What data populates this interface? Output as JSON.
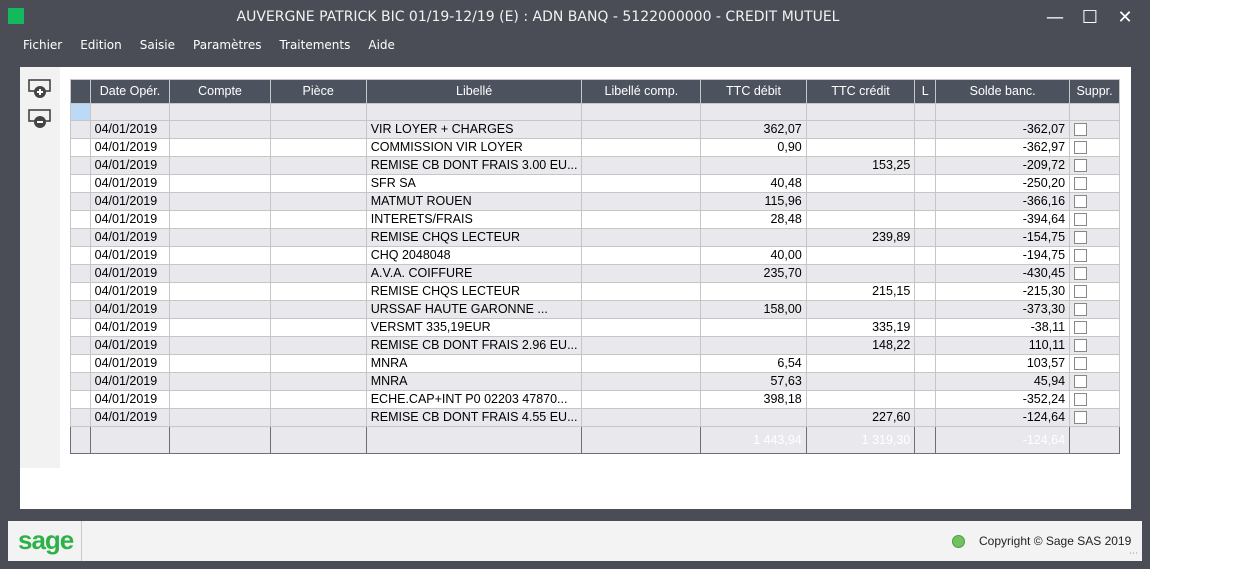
{
  "window": {
    "title": "AUVERGNE PATRICK BIC 01/19-12/19 (E) : ADN BANQ - 5122000000 - CREDIT MUTUEL",
    "minimize_icon": "minimize-icon",
    "maximize_icon": "maximize-icon",
    "close_icon": "close-icon"
  },
  "menu": [
    "Fichier",
    "Edition",
    "Saisie",
    "Paramètres",
    "Traitements",
    "Aide"
  ],
  "tools": {
    "add_icon": "add-line-icon",
    "remove_icon": "remove-line-icon"
  },
  "table": {
    "columns": [
      "Date Opér.",
      "Compte",
      "Pièce",
      "Libellé",
      "Libellé comp.",
      "TTC débit",
      "TTC crédit",
      "L",
      "Solde banc.",
      "Suppr."
    ],
    "rows": [
      {
        "date": "04/01/2019",
        "compte": "",
        "piece": "",
        "libelle": "VIR LOYER + CHARGES",
        "libelle_comp": "",
        "debit": "362,07",
        "credit": "",
        "l": "",
        "solde": "-362,07"
      },
      {
        "date": "04/01/2019",
        "compte": "",
        "piece": "",
        "libelle": "COMMISSION VIR LOYER",
        "libelle_comp": "",
        "debit": "0,90",
        "credit": "",
        "l": "",
        "solde": "-362,97"
      },
      {
        "date": "04/01/2019",
        "compte": "",
        "piece": "",
        "libelle": "REMISE CB DONT FRAIS 3.00 EU...",
        "libelle_comp": "",
        "debit": "",
        "credit": "153,25",
        "l": "",
        "solde": "-209,72"
      },
      {
        "date": "04/01/2019",
        "compte": "",
        "piece": "",
        "libelle": "SFR SA",
        "libelle_comp": "",
        "debit": "40,48",
        "credit": "",
        "l": "",
        "solde": "-250,20"
      },
      {
        "date": "04/01/2019",
        "compte": "",
        "piece": "",
        "libelle": "MATMUT ROUEN",
        "libelle_comp": "",
        "debit": "115,96",
        "credit": "",
        "l": "",
        "solde": "-366,16"
      },
      {
        "date": "04/01/2019",
        "compte": "",
        "piece": "",
        "libelle": "INTERETS/FRAIS",
        "libelle_comp": "",
        "debit": "28,48",
        "credit": "",
        "l": "",
        "solde": "-394,64"
      },
      {
        "date": "04/01/2019",
        "compte": "",
        "piece": "",
        "libelle": "REMISE CHQS LECTEUR",
        "libelle_comp": "",
        "debit": "",
        "credit": "239,89",
        "l": "",
        "solde": "-154,75"
      },
      {
        "date": "04/01/2019",
        "compte": "",
        "piece": "",
        "libelle": "CHQ 2048048",
        "libelle_comp": "",
        "debit": "40,00",
        "credit": "",
        "l": "",
        "solde": "-194,75"
      },
      {
        "date": "04/01/2019",
        "compte": "",
        "piece": "",
        "libelle": "A.V.A. COIFFURE",
        "libelle_comp": "",
        "debit": "235,70",
        "credit": "",
        "l": "",
        "solde": "-430,45"
      },
      {
        "date": "04/01/2019",
        "compte": "",
        "piece": "",
        "libelle": "REMISE CHQS LECTEUR",
        "libelle_comp": "",
        "debit": "",
        "credit": "215,15",
        "l": "",
        "solde": "-215,30"
      },
      {
        "date": "04/01/2019",
        "compte": "",
        "piece": "",
        "libelle": "URSSAF HAUTE GARONNE        ...",
        "libelle_comp": "",
        "debit": "158,00",
        "credit": "",
        "l": "",
        "solde": "-373,30"
      },
      {
        "date": "04/01/2019",
        "compte": "",
        "piece": "",
        "libelle": "VERSMT 335,19EUR",
        "libelle_comp": "",
        "debit": "",
        "credit": "335,19",
        "l": "",
        "solde": "-38,11"
      },
      {
        "date": "04/01/2019",
        "compte": "",
        "piece": "",
        "libelle": "REMISE CB DONT FRAIS 2.96 EU...",
        "libelle_comp": "",
        "debit": "",
        "credit": "148,22",
        "l": "",
        "solde": "110,11"
      },
      {
        "date": "04/01/2019",
        "compte": "",
        "piece": "",
        "libelle": "MNRA",
        "libelle_comp": "",
        "debit": "6,54",
        "credit": "",
        "l": "",
        "solde": "103,57"
      },
      {
        "date": "04/01/2019",
        "compte": "",
        "piece": "",
        "libelle": "MNRA",
        "libelle_comp": "",
        "debit": "57,63",
        "credit": "",
        "l": "",
        "solde": "45,94"
      },
      {
        "date": "04/01/2019",
        "compte": "",
        "piece": "",
        "libelle": "ECHE.CAP+INT P0 02203 47870...",
        "libelle_comp": "",
        "debit": "398,18",
        "credit": "",
        "l": "",
        "solde": "-352,24"
      },
      {
        "date": "04/01/2019",
        "compte": "",
        "piece": "",
        "libelle": "REMISE CB DONT FRAIS 4.55 EU...",
        "libelle_comp": "",
        "debit": "",
        "credit": "227,60",
        "l": "",
        "solde": "-124,64"
      }
    ],
    "totals": {
      "debit": "1 443,94",
      "credit": "1 319,30",
      "solde": "-124,64"
    }
  },
  "footer": {
    "logo": "sage",
    "status_icon": "status-led-icon",
    "copyright": "Copyright © Sage SAS 2019"
  },
  "colors": {
    "chrome": "#4a4d55",
    "header": "#4d535e",
    "row_alt": "#e9e9ed",
    "brand": "#2db24a"
  }
}
